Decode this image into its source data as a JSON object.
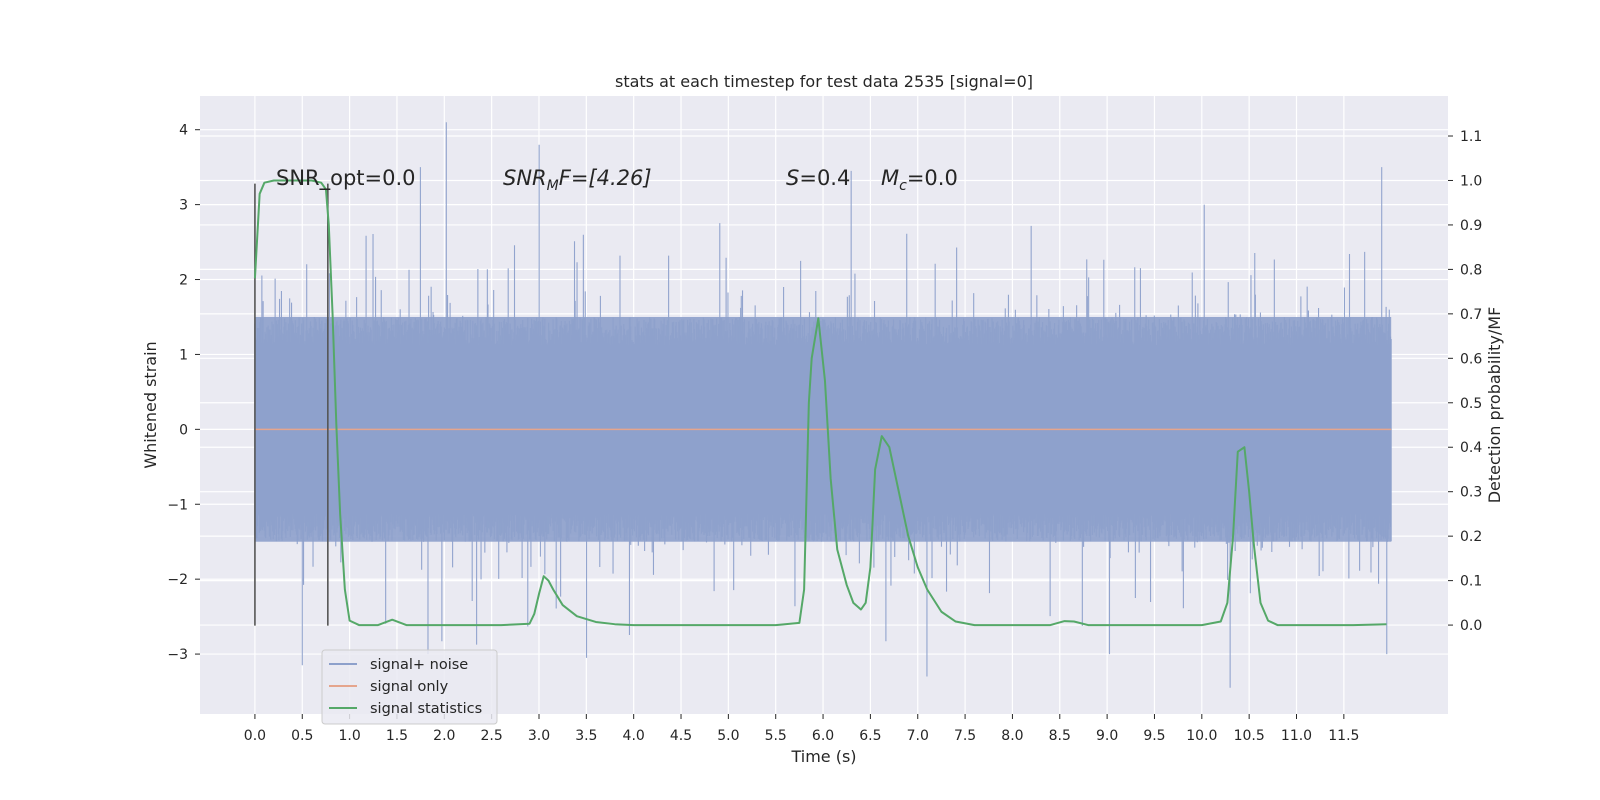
{
  "chart_data": {
    "type": "line",
    "title": "stats at each timestep for test data 2535 [signal=0]",
    "xlabel": "Time (s)",
    "ylabel": "Whitened strain",
    "ylabel_right": "Detection probability/MF",
    "xlim": [
      -0.58,
      12.6
    ],
    "ylim": [
      -3.8,
      4.45
    ],
    "ylim_right": [
      -0.2,
      1.19
    ],
    "x_ticks": [
      "0.0",
      "0.5",
      "1.0",
      "1.5",
      "2.0",
      "2.5",
      "3.0",
      "3.5",
      "4.0",
      "4.5",
      "5.0",
      "5.5",
      "6.0",
      "6.5",
      "7.0",
      "7.5",
      "8.0",
      "8.5",
      "9.0",
      "9.5",
      "10.0",
      "10.5",
      "11.0",
      "11.5"
    ],
    "y_ticks": [
      "−3",
      "−2",
      "−1",
      "0",
      "1",
      "2",
      "3",
      "4"
    ],
    "y_ticks_right": [
      "0.0",
      "0.1",
      "0.2",
      "0.3",
      "0.4",
      "0.5",
      "0.6",
      "0.7",
      "0.8",
      "0.9",
      "1.0",
      "1.1"
    ],
    "grid": true,
    "legend_position": "lower-left",
    "annotations": {
      "snr_opt": "SNR_opt=0.0",
      "snr_mf_main": "SNR",
      "snr_mf_sub": "M",
      "snr_mf_rest": "F=[4.26]",
      "s_sym": "S",
      "s_val": "=0.4",
      "mc_sym": "M",
      "mc_sub": "c",
      "mc_val": "=0.0"
    },
    "marker_lines_x": [
      0.0,
      0.77
    ],
    "series": [
      {
        "name": "signal+ noise",
        "axis": "left",
        "color": "#8da0cb",
        "x_range": [
          0.0,
          12.0
        ],
        "bulk_band": [
          -1.5,
          1.5
        ],
        "notable_peaks": [
          {
            "x": 2.02,
            "y": 4.1
          },
          {
            "x": 3.0,
            "y": 3.8
          },
          {
            "x": 1.75,
            "y": 3.5
          },
          {
            "x": 11.9,
            "y": 3.5
          },
          {
            "x": 6.3,
            "y": 3.45
          },
          {
            "x": 10.3,
            "y": -3.45
          },
          {
            "x": 7.1,
            "y": -3.3
          },
          {
            "x": 0.5,
            "y": -3.15
          },
          {
            "x": 3.5,
            "y": -3.05
          }
        ]
      },
      {
        "name": "signal only",
        "axis": "left",
        "color": "#e5a58d",
        "x": [
          0.0,
          12.0
        ],
        "y": [
          0.0,
          0.0
        ]
      },
      {
        "name": "signal statistics",
        "axis": "right",
        "color": "#55a868",
        "x": [
          0.0,
          0.05,
          0.1,
          0.2,
          0.3,
          0.4,
          0.5,
          0.6,
          0.7,
          0.75,
          0.78,
          0.82,
          0.86,
          0.9,
          0.95,
          1.0,
          1.1,
          1.3,
          1.45,
          1.6,
          1.8,
          2.2,
          2.6,
          2.9,
          2.95,
          3.0,
          3.05,
          3.1,
          3.15,
          3.25,
          3.4,
          3.6,
          3.8,
          4.0,
          4.5,
          5.0,
          5.5,
          5.75,
          5.8,
          5.85,
          5.88,
          5.95,
          6.02,
          6.08,
          6.15,
          6.25,
          6.32,
          6.4,
          6.45,
          6.5,
          6.55,
          6.62,
          6.7,
          6.8,
          6.9,
          7.0,
          7.1,
          7.25,
          7.4,
          7.6,
          8.0,
          8.4,
          8.55,
          8.65,
          8.8,
          9.2,
          9.6,
          10.0,
          10.2,
          10.27,
          10.33,
          10.38,
          10.45,
          10.5,
          10.55,
          10.62,
          10.7,
          10.8,
          11.0,
          11.3,
          11.6,
          11.95
        ],
        "y": [
          0.78,
          0.97,
          0.995,
          1.0,
          1.0,
          1.0,
          1.0,
          1.0,
          0.995,
          0.98,
          0.9,
          0.7,
          0.45,
          0.25,
          0.08,
          0.01,
          0.0,
          0.0,
          0.012,
          0.0,
          0.0,
          0.0,
          0.0,
          0.003,
          0.025,
          0.07,
          0.11,
          0.1,
          0.08,
          0.045,
          0.02,
          0.007,
          0.002,
          0.0,
          0.0,
          0.0,
          0.0,
          0.005,
          0.08,
          0.5,
          0.6,
          0.69,
          0.55,
          0.33,
          0.17,
          0.09,
          0.05,
          0.035,
          0.05,
          0.13,
          0.35,
          0.425,
          0.4,
          0.3,
          0.2,
          0.13,
          0.08,
          0.03,
          0.008,
          0.0,
          0.0,
          0.0,
          0.009,
          0.008,
          0.0,
          0.0,
          0.0,
          0.0,
          0.008,
          0.05,
          0.2,
          0.39,
          0.4,
          0.3,
          0.18,
          0.05,
          0.01,
          0.0,
          0.0,
          0.0,
          0.0,
          0.002
        ]
      }
    ]
  }
}
